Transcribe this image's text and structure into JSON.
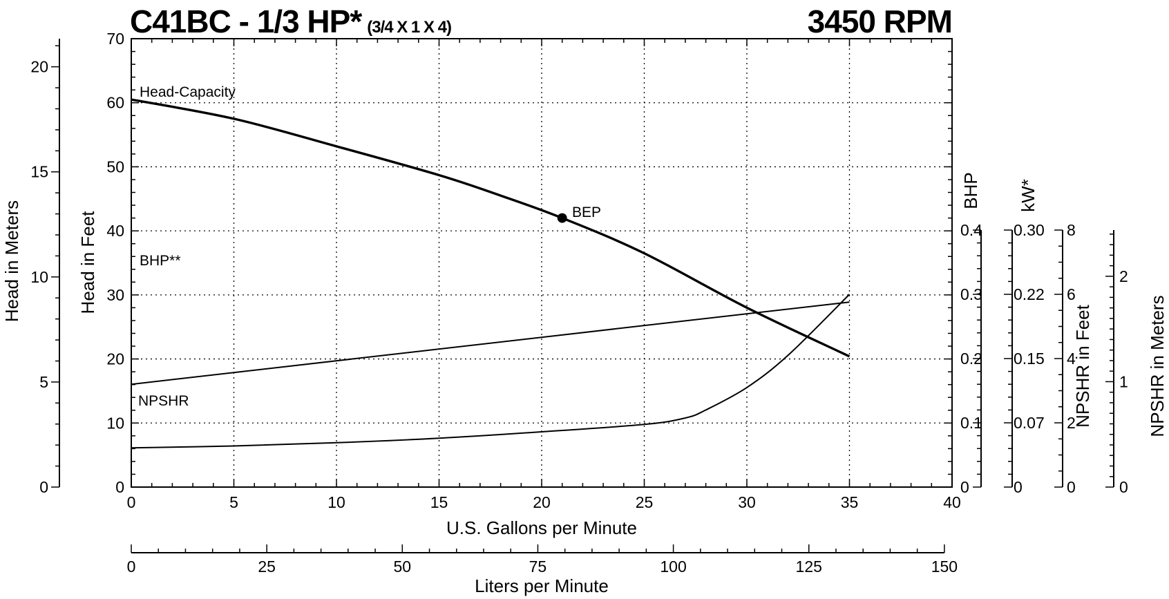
{
  "title": {
    "model": "C41BC - 1/3 HP*",
    "size": "(3/4 X 1 X 4)",
    "speed": "3450 RPM"
  },
  "axes": {
    "x_label": "U.S. Gallons per Minute",
    "x2_label": "Liters per Minute",
    "y_left_label": "Head in Feet",
    "y_left2_label": "Head in Meters",
    "bhp_label": "BHP",
    "kw_label": "kW*",
    "npshr_ft_label": "NPSHR in Feet",
    "npshr_m_label": "NPSHR in Meters"
  },
  "chart_data": {
    "type": "line",
    "x": {
      "label": "U.S. Gallons per Minute",
      "lim": [
        0,
        40
      ],
      "ticks": [
        "0",
        "5",
        "10",
        "15",
        "20",
        "25",
        "30",
        "35",
        "40"
      ]
    },
    "x2": {
      "label": "Liters per Minute",
      "lim": [
        0,
        150
      ],
      "ticks": [
        "0",
        "25",
        "50",
        "75",
        "100",
        "125",
        "150"
      ]
    },
    "y_head_ft": {
      "label": "Head in Feet",
      "lim": [
        0,
        70
      ],
      "ticks": [
        "0",
        "10",
        "20",
        "30",
        "40",
        "50",
        "60",
        "70"
      ]
    },
    "y_head_m": {
      "label": "Head in Meters",
      "lim": [
        0,
        21.3
      ],
      "ticks": [
        "0",
        "5",
        "10",
        "15",
        "20"
      ]
    },
    "y_bhp": {
      "label": "BHP",
      "lim": [
        0,
        0.4
      ],
      "ticks": [
        "0",
        "0.1",
        "0.2",
        "0.3",
        "0.4"
      ]
    },
    "y_kw": {
      "label": "kW*",
      "lim": [
        0,
        0.3
      ],
      "ticks": [
        "0",
        "0.07",
        "0.15",
        "0.22",
        "0.30"
      ]
    },
    "y_npshr_ft": {
      "label": "NPSHR in Feet",
      "lim": [
        0,
        8
      ],
      "ticks": [
        "0",
        "2",
        "4",
        "6",
        "8"
      ]
    },
    "y_npshr_m": {
      "label": "NPSHR in Meters",
      "lim": [
        0,
        2.44
      ],
      "ticks": [
        "0",
        "1",
        "2"
      ]
    },
    "grid": true,
    "series": [
      {
        "name": "Head-Capacity",
        "axis": "head_ft",
        "x": [
          0,
          5,
          10,
          15,
          18,
          21,
          25,
          30,
          35
        ],
        "y": [
          60.5,
          57.5,
          53.2,
          48.7,
          45.5,
          42.0,
          36.5,
          28.0,
          20.4
        ]
      },
      {
        "name": "BHP**",
        "axis": "bhp",
        "x": [
          0,
          35
        ],
        "y": [
          0.16,
          0.288
        ]
      },
      {
        "name": "NPSHR",
        "axis": "npshr_ft",
        "x": [
          0,
          5,
          10,
          15,
          20,
          25,
          27,
          28,
          30,
          32,
          35
        ],
        "y": [
          1.22,
          1.28,
          1.38,
          1.52,
          1.72,
          1.95,
          2.15,
          2.4,
          3.1,
          4.1,
          6.0
        ]
      }
    ],
    "annotations": [
      {
        "label": "BEP",
        "x": 21,
        "y": 42
      }
    ]
  }
}
